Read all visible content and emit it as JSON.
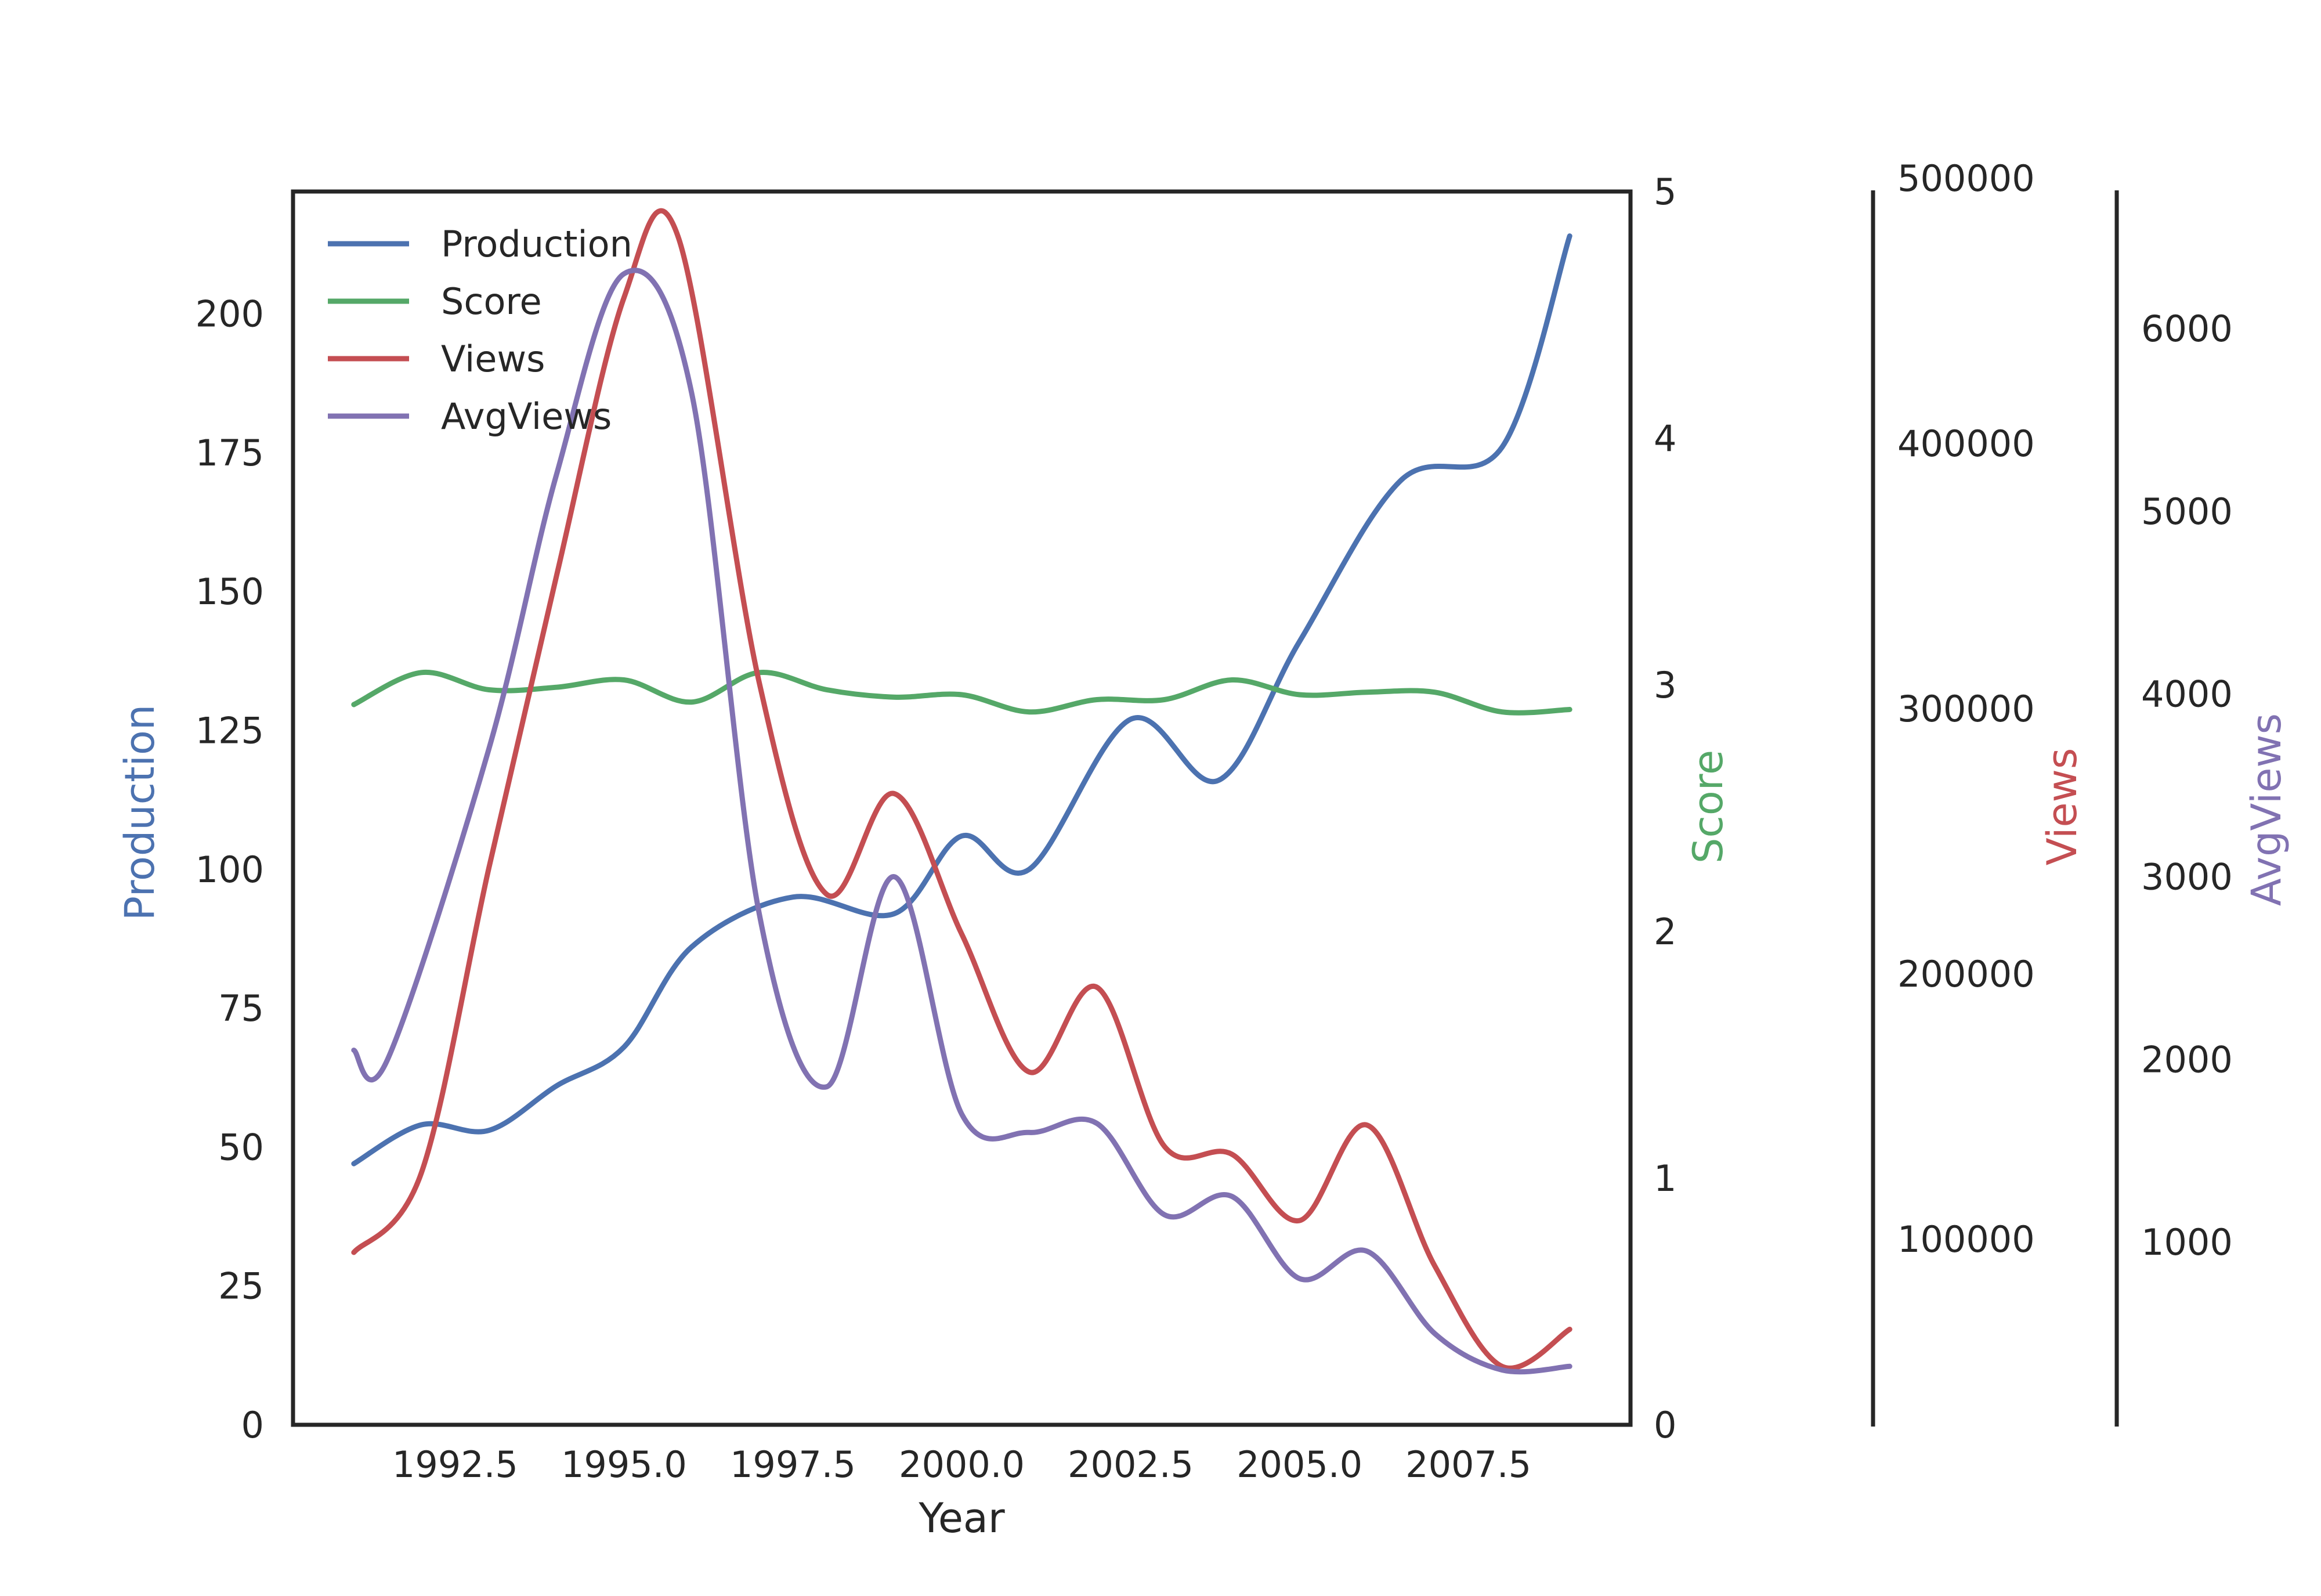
{
  "chart_data": {
    "type": "line",
    "xlabel": "Year",
    "x": [
      1991,
      1992,
      1993,
      1994,
      1995,
      1996,
      1997,
      1998,
      1999,
      2000,
      2001,
      2002,
      2003,
      2004,
      2005,
      2006,
      2007,
      2008,
      2009
    ],
    "x_ticks": [
      1992.5,
      1995.0,
      1997.5,
      2000.0,
      2002.5,
      2005.0,
      2007.5
    ],
    "x_tick_labels": [
      "1992.5",
      "1995.0",
      "1997.5",
      "2000.0",
      "2002.5",
      "2005.0",
      "2007.5"
    ],
    "xlim": [
      1990.1,
      2009.9
    ],
    "legend": {
      "position": "top-left",
      "entries": [
        "Production",
        "Score",
        "Views",
        "AvgViews"
      ]
    },
    "grid": false,
    "axes": [
      {
        "id": "production",
        "label": "Production",
        "side": "left",
        "color": "#4c72b0",
        "lim": [
          0,
          222
        ],
        "ticks": [
          0,
          25,
          50,
          75,
          100,
          125,
          150,
          175,
          200
        ],
        "tick_labels": [
          "0",
          "25",
          "50",
          "75",
          "100",
          "125",
          "150",
          "175",
          "200"
        ]
      },
      {
        "id": "score",
        "label": "Score",
        "side": "right",
        "color": "#55a868",
        "lim": [
          0,
          5
        ],
        "ticks": [
          0,
          1,
          2,
          3,
          4,
          5
        ],
        "tick_labels": [
          "0",
          "1",
          "2",
          "3",
          "4",
          "5"
        ]
      },
      {
        "id": "views",
        "label": "Views",
        "side": "right",
        "color": "#c44e52",
        "lim": [
          30000,
          495000
        ],
        "ticks": [
          100000,
          200000,
          300000,
          400000,
          500000
        ],
        "tick_labels": [
          "100000",
          "200000",
          "300000",
          "400000",
          "500000"
        ]
      },
      {
        "id": "avgviews",
        "label": "AvgViews",
        "side": "right",
        "color": "#8172b2",
        "lim": [
          0,
          6750
        ],
        "ticks": [
          1000,
          2000,
          3000,
          4000,
          5000,
          6000
        ],
        "tick_labels": [
          "1000",
          "2000",
          "3000",
          "4000",
          "5000",
          "6000"
        ]
      }
    ],
    "series": [
      {
        "name": "Production",
        "axis": "production",
        "color": "#4c72b0",
        "values": [
          47,
          54,
          53,
          61,
          68,
          86,
          95,
          92,
          106,
          100,
          127,
          116,
          141,
          170,
          176,
          214
        ],
        "x": [
          1991,
          1992,
          1993,
          1994,
          1995,
          1996,
          1997.5,
          1999,
          2000,
          2001,
          2002.5,
          2003.8,
          2005,
          2006.5,
          2008,
          2009
        ]
      },
      {
        "name": "Score",
        "axis": "score",
        "color": "#55a868",
        "values": [
          2.92,
          3.05,
          2.98,
          2.99,
          3.02,
          2.93,
          3.05,
          2.98,
          2.95,
          2.96,
          2.89,
          2.94,
          2.94,
          3.02,
          2.96,
          2.97,
          2.97,
          2.89,
          2.9
        ],
        "x": [
          1991,
          1992,
          1993,
          1994,
          1995,
          1996,
          1997,
          1998,
          1999,
          2000,
          2001,
          2002,
          2003,
          2004,
          2005,
          2006,
          2007,
          2008,
          2009
        ]
      },
      {
        "name": "Views",
        "axis": "views",
        "color": "#c44e52",
        "values": [
          95000,
          125000,
          240000,
          350000,
          455000,
          478000,
          310000,
          230000,
          268000,
          215000,
          163000,
          195000,
          135000,
          132000,
          107000,
          143000,
          90000,
          52000,
          66000
        ],
        "x": [
          1991,
          1992,
          1993,
          1994,
          1995,
          1995.8,
          1997,
          1998,
          1999,
          2000,
          2001,
          2002,
          2003,
          2004,
          2005,
          2006,
          2007,
          2008,
          2009
        ]
      },
      {
        "name": "AvgViews",
        "axis": "avgviews",
        "color": "#8172b2",
        "values": [
          2050,
          2000,
          3700,
          5200,
          6300,
          5650,
          2800,
          1850,
          3000,
          1700,
          1600,
          1650,
          1150,
          1250,
          800,
          950,
          500,
          300,
          320
        ],
        "x": [
          1991,
          1991.5,
          1993,
          1994,
          1995,
          1996,
          1997,
          1998,
          1999,
          2000,
          2001,
          2002,
          2003,
          2004,
          2005,
          2006,
          2007,
          2008,
          2009
        ]
      }
    ]
  }
}
